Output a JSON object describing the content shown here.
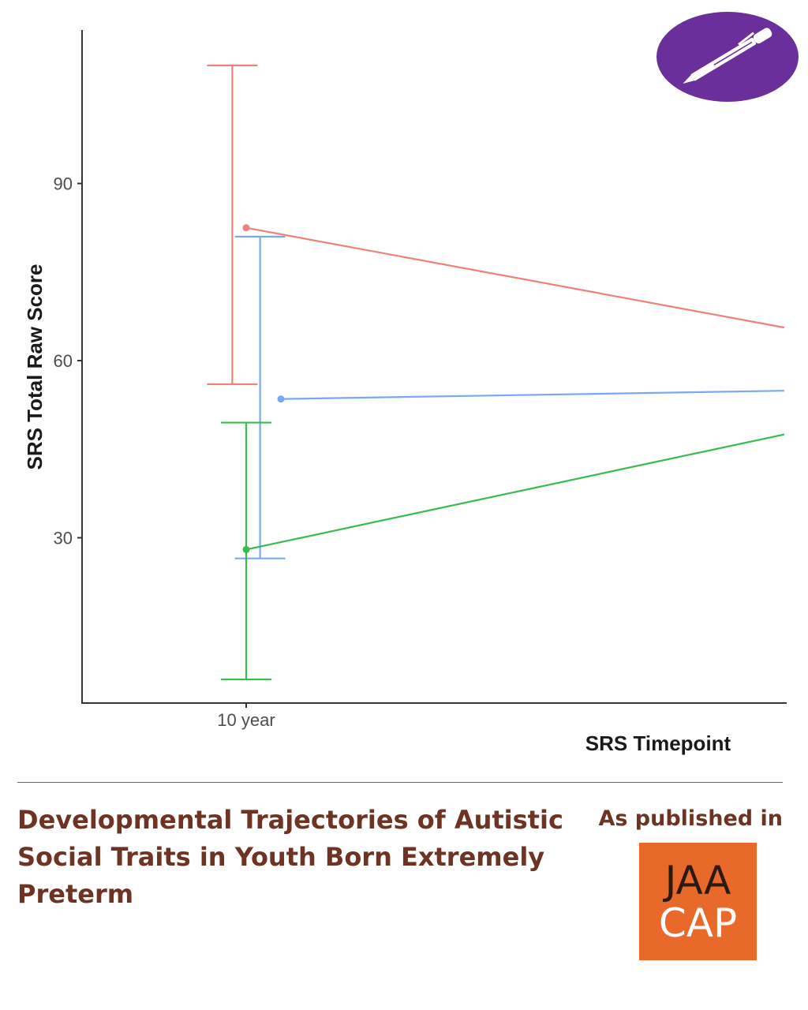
{
  "colors": {
    "red": "#f0807a",
    "blue": "#7aa8f5",
    "green": "#35bd4e",
    "brown_text": "#6e3322",
    "jaacap_orange": "#e8692a",
    "logo_purple": "#6a2f9a"
  },
  "chart_data": {
    "type": "line",
    "xlabel": "SRS Timepoint",
    "ylabel": "SRS Total Raw Score",
    "categories": [
      "10 year"
    ],
    "x_tick_labels": [
      "10 year"
    ],
    "y_ticks": [
      30,
      60,
      90
    ],
    "ylim": [
      2,
      116
    ],
    "grid": false,
    "series": [
      {
        "color": "#f0807a",
        "x": [
          0,
          3.1
        ],
        "values": [
          82.5,
          65.6
        ],
        "error": [
          56,
          110
        ]
      },
      {
        "color": "#7aa8f5",
        "x": [
          0.2,
          3.1
        ],
        "values": [
          53.5,
          54.9
        ],
        "error": [
          26.5,
          81
        ]
      },
      {
        "color": "#35bd4e",
        "x": [
          0,
          3.1
        ],
        "values": [
          28,
          47.5
        ],
        "error": [
          6,
          49.5
        ]
      }
    ]
  },
  "icons": {
    "logo": "pen-icon"
  },
  "footer": {
    "title": "Developmental Trajectories of Autistic Social Traits in Youth Born Extremely Preterm",
    "published_label": "As published in",
    "journal_top": "JAA",
    "journal_bottom": "CAP"
  }
}
